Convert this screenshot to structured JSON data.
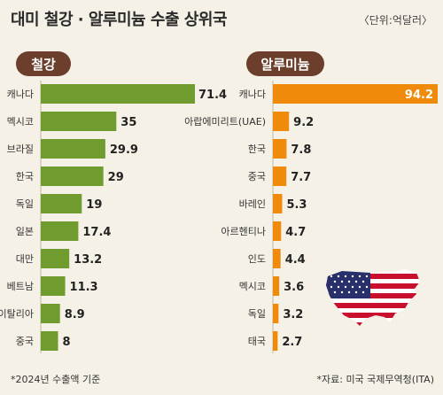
{
  "header": {
    "title": "대미 철강 · 알루미늄 수출 상위국",
    "unit": "〈단위:억달러〉"
  },
  "colors": {
    "steel": "#6f9b2f",
    "aluminum": "#f08a0a",
    "pill": "#6b3f2b",
    "background": "#f5f1e6"
  },
  "footer": {
    "note": "*2024년 수출액 기준",
    "source": "*자료: 미국 국제무역청(ITA)"
  },
  "chart_data": [
    {
      "type": "bar",
      "title": "철강",
      "categories": [
        "캐나다",
        "멕시코",
        "브라질",
        "한국",
        "독일",
        "일본",
        "대만",
        "베트남",
        "이탈리아",
        "중국"
      ],
      "values": [
        71.4,
        35,
        29.9,
        29,
        19,
        17.4,
        13.2,
        11.3,
        8.9,
        8
      ],
      "labels": [
        "71.4",
        "35",
        "29.9",
        "29",
        "19",
        "17.4",
        "13.2",
        "11.3",
        "8.9",
        "8"
      ],
      "orientation": "horizontal"
    },
    {
      "type": "bar",
      "title": "알루미늄",
      "categories": [
        "캐나다",
        "아랍에미리트(UAE)",
        "한국",
        "중국",
        "바레인",
        "아르헨티나",
        "인도",
        "멕시코",
        "독일",
        "태국"
      ],
      "values": [
        94.2,
        9.2,
        7.8,
        7.7,
        5.3,
        4.7,
        4.4,
        3.6,
        3.2,
        2.7
      ],
      "labels": [
        "94.2",
        "9.2",
        "7.8",
        "7.7",
        "5.3",
        "4.7",
        "4.4",
        "3.6",
        "3.2",
        "2.7"
      ],
      "orientation": "horizontal"
    }
  ]
}
